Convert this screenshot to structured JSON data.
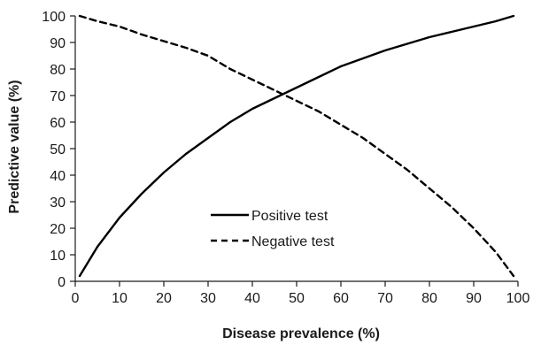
{
  "chart_data": {
    "type": "line",
    "xlabel": "Disease prevalence (%)",
    "ylabel": "Predictive value (%)",
    "xlim": [
      0,
      100
    ],
    "ylim": [
      0,
      100
    ],
    "xticks": [
      0,
      10,
      20,
      30,
      40,
      50,
      60,
      70,
      80,
      90,
      100
    ],
    "yticks": [
      0,
      10,
      20,
      30,
      40,
      50,
      60,
      70,
      80,
      90,
      100
    ],
    "grid": false,
    "legend_position": "lower-left-center",
    "series": [
      {
        "name": "Positive test",
        "color": "#000000",
        "style": "solid",
        "points": [
          [
            1,
            2
          ],
          [
            5,
            13
          ],
          [
            10,
            24
          ],
          [
            15,
            33
          ],
          [
            20,
            41
          ],
          [
            25,
            48
          ],
          [
            30,
            54
          ],
          [
            35,
            60
          ],
          [
            40,
            65
          ],
          [
            45,
            69
          ],
          [
            50,
            73
          ],
          [
            55,
            77
          ],
          [
            60,
            81
          ],
          [
            65,
            84
          ],
          [
            70,
            87
          ],
          [
            75,
            89.5
          ],
          [
            80,
            92
          ],
          [
            85,
            94
          ],
          [
            90,
            96
          ],
          [
            95,
            98
          ],
          [
            99,
            100
          ]
        ]
      },
      {
        "name": "Negative test",
        "color": "#000000",
        "style": "dashed",
        "points": [
          [
            1,
            100
          ],
          [
            5,
            98
          ],
          [
            10,
            96
          ],
          [
            15,
            93
          ],
          [
            20,
            90.5
          ],
          [
            25,
            88
          ],
          [
            30,
            85
          ],
          [
            35,
            80
          ],
          [
            40,
            76
          ],
          [
            45,
            72
          ],
          [
            50,
            68
          ],
          [
            55,
            64
          ],
          [
            60,
            59
          ],
          [
            65,
            54
          ],
          [
            70,
            48
          ],
          [
            75,
            42
          ],
          [
            80,
            35
          ],
          [
            85,
            28
          ],
          [
            90,
            20
          ],
          [
            95,
            11
          ],
          [
            99,
            2
          ]
        ]
      }
    ]
  }
}
